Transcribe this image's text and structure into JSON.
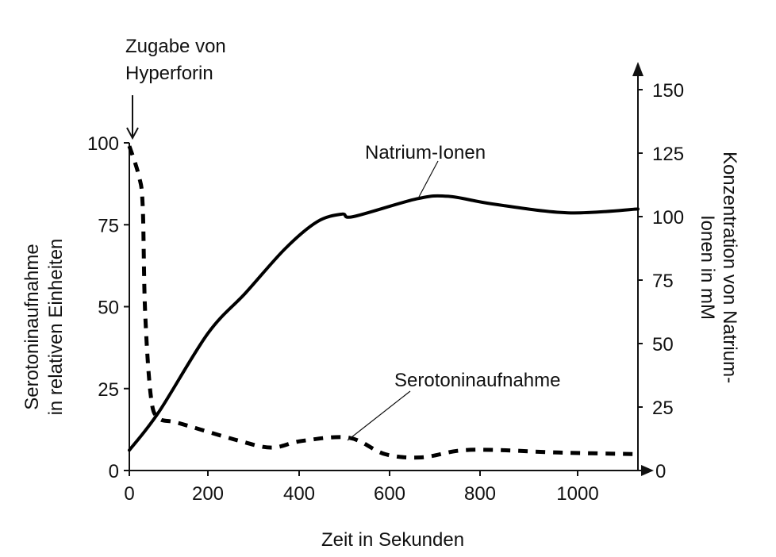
{
  "chart_data": {
    "type": "line",
    "title": "",
    "xlabel": "Zeit in Sekunden",
    "ylabel_left": "Serotoninaufnahme\nin relativen Einheiten",
    "ylabel_left_lines": [
      "Serotoninaufnahme",
      "in relativen Einheiten"
    ],
    "ylabel_right": "Konzentration von Natrium-\nIonen in mM",
    "ylabel_right_lines": [
      "Konzentration von Natrium-",
      "Ionen in mM"
    ],
    "xlim": [
      0,
      1130
    ],
    "ylim_left": [
      0,
      100
    ],
    "ylim_right": [
      0,
      150
    ],
    "x_ticks": [
      0,
      200,
      400,
      600,
      800,
      1000
    ],
    "y_ticks_left": [
      0,
      25,
      50,
      75,
      100
    ],
    "y_ticks_right": [
      0,
      25,
      50,
      75,
      100,
      125,
      150
    ],
    "grid": false,
    "legend": "none (inline labels)",
    "series": [
      {
        "name": "Natrium-Ionen",
        "axis": "right",
        "style": "solid",
        "x": [
          0,
          75,
          200,
          283,
          370,
          440,
          495,
          520,
          660,
          730,
          825,
          980,
          1130
        ],
        "values": [
          8,
          23,
          54,
          70,
          87.5,
          98,
          101,
          100,
          107,
          108,
          105,
          101.5,
          103
        ]
      },
      {
        "name": "Serotoninaufnahme",
        "axis": "left",
        "style": "dashed",
        "x": [
          0,
          24,
          34,
          40,
          55,
          75,
          125,
          270,
          340,
          405,
          510,
          590,
          670,
          750,
          825,
          960,
          1130
        ],
        "values": [
          99,
          90,
          81,
          49,
          22.5,
          16,
          14.5,
          9,
          7,
          9,
          10,
          5,
          4,
          6,
          6.3,
          5.5,
          5
        ]
      }
    ],
    "annotations": [
      {
        "text": "Zugabe von\nHyperforin",
        "lines": [
          "Zugabe von",
          "Hyperforin"
        ],
        "arrow_at_x": 0
      },
      {
        "text": "Natrium-Ionen",
        "points_to": "Natrium-Ionen"
      },
      {
        "text": "Serotoninaufnahme",
        "points_to": "Serotoninaufnahme"
      }
    ]
  }
}
